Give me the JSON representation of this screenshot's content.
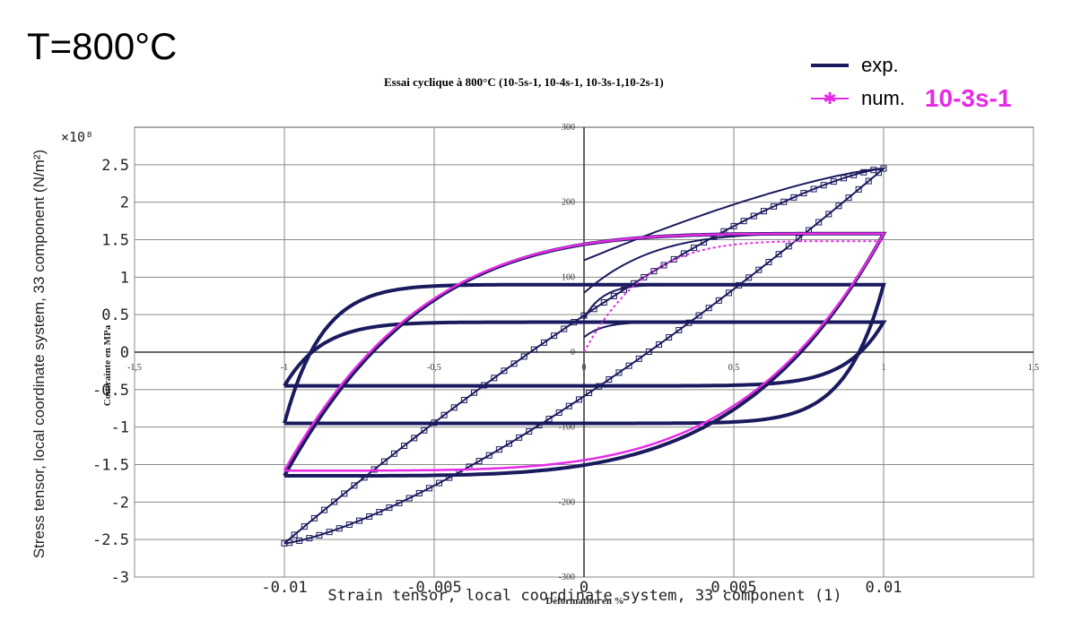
{
  "page": {
    "title": "T=800°C"
  },
  "legend": {
    "exp_label": "exp.",
    "num_label": "num.",
    "condition": "10-3s-1",
    "exp_color": "#1a1a5e",
    "num_color": "#e62be6"
  },
  "chart_data": {
    "type": "line",
    "title": "Essai cyclique à 800°C (10-5s-1, 10-4s-1, 10-3s-1,10-2s-1)",
    "xlabel": "Strain tensor, local coordinate system, 33 component (1)",
    "ylabel": "Stress tensor, local coordinate system, 33 component (N/m²)",
    "y_multiplier_label": "×10⁸",
    "secondary_xlabel": "Déformation en %",
    "secondary_ylabel": "Contrainte en MPa",
    "xlim": [
      -0.015,
      0.015
    ],
    "ylim": [
      -3,
      3
    ],
    "x_ticks": [
      -0.01,
      -0.005,
      0,
      0.005,
      0.01
    ],
    "x_tick_labels": [
      "-0.01",
      "-0.005",
      "0",
      "0.005",
      "0.01"
    ],
    "y_ticks": [
      -3,
      -2.5,
      -2,
      -1.5,
      -1,
      -0.5,
      0,
      0.5,
      1,
      1.5,
      2,
      2.5
    ],
    "y_tick_labels": [
      "-3",
      "-2.5",
      "-2",
      "-1.5",
      "-1",
      "-0.5",
      "0",
      "0.5",
      "1",
      "1.5",
      "2",
      "2.5"
    ],
    "secondary_x_ticks": [
      -1.5,
      -1,
      -0.5,
      0,
      0.5,
      1,
      1.5
    ],
    "secondary_x_tick_labels": [
      "-1,5",
      "-1",
      "-0,5",
      "0",
      "0,5",
      "1",
      "1,5"
    ],
    "secondary_y_ticks": [
      -300,
      -200,
      -100,
      0,
      100,
      200,
      300
    ],
    "secondary_y_tick_labels": [
      "-300",
      "-200",
      "-100",
      "0",
      "100",
      "200",
      "300"
    ],
    "grid": true,
    "legend_position": "top-right",
    "series": [
      {
        "name": "exp.",
        "color": "#1a1a5e",
        "loops": [
          {
            "rate": "10-2s-1",
            "max": 2.45,
            "min": -2.55,
            "back_top": 1.87,
            "curve": "hard",
            "marker": "square"
          },
          {
            "rate": "10-3s-1",
            "max": 1.58,
            "min": -1.65,
            "back_top": 1.25,
            "curve": "mid",
            "marker": "dot"
          },
          {
            "rate": "10-4s-1",
            "max": 0.9,
            "min": -0.95,
            "back_top": 0.8,
            "curve": "flat",
            "marker": "dot"
          },
          {
            "rate": "10-5s-1",
            "max": 0.4,
            "min": -0.45,
            "back_top": 0.45,
            "curve": "flat",
            "marker": "dot"
          }
        ]
      },
      {
        "name": "num.",
        "color": "#e62be6",
        "loops": [
          {
            "rate": "10-3s-1",
            "max": 1.58,
            "min": -1.58,
            "curve": "mid",
            "first_loading_end": 1.48
          }
        ]
      }
    ]
  }
}
